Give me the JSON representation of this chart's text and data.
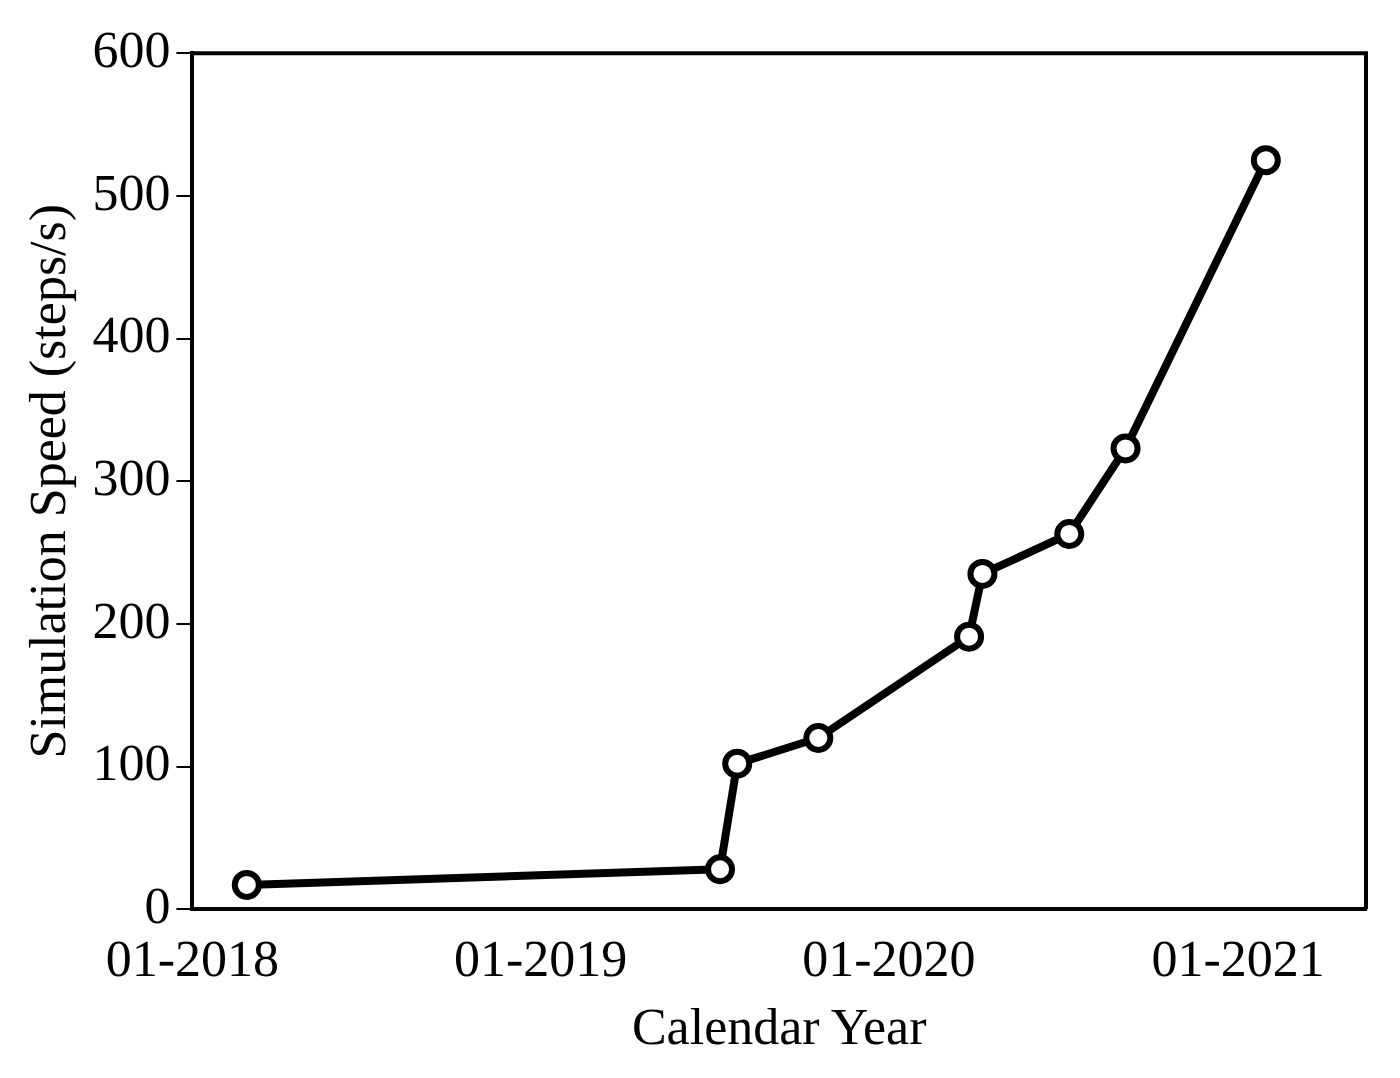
{
  "chart_data": {
    "type": "line",
    "xlabel": "Calendar Year",
    "ylabel": "Simulation Speed (steps/s)",
    "x": [
      "2018-02-27",
      "2019-07-08",
      "2019-07-26",
      "2019-10-19",
      "2020-03-25",
      "2020-04-08",
      "2020-07-08",
      "2020-09-05",
      "2021-01-30"
    ],
    "series": [
      {
        "color": "#000000",
        "values": [
          17,
          28,
          102,
          120,
          191,
          235,
          263,
          323,
          525
        ]
      }
    ],
    "xlim": [
      "2018-01-01",
      "2021-05-15"
    ],
    "xticks": [
      {
        "value": "2018-01-01",
        "label": "01-2018"
      },
      {
        "value": "2019-01-01",
        "label": "01-2019"
      },
      {
        "value": "2020-01-01",
        "label": "01-2020"
      },
      {
        "value": "2021-01-01",
        "label": "01-2021"
      }
    ],
    "ylim": [
      0,
      600
    ],
    "yticks": [
      0,
      100,
      200,
      300,
      400,
      500,
      600
    ],
    "grid": false,
    "legend": false,
    "marker": "circle",
    "line_style": "solid"
  }
}
